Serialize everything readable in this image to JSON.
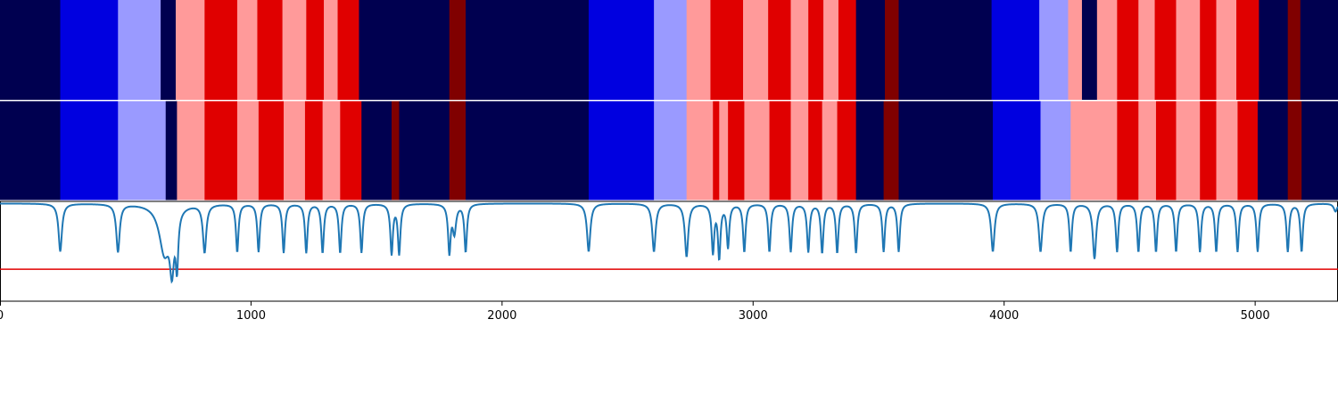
{
  "chart_data": [
    {
      "type": "heatmap",
      "title": "",
      "xlabel": "",
      "ylabel": "",
      "xlim": [
        0,
        5330
      ],
      "palette": {
        "1": "#000050",
        "2": "#0000e0",
        "3": "#9a9aff",
        "4": "#ff9a9a",
        "5": "#e00000",
        "6": "#800000"
      },
      "segments": [
        [
          0,
          240,
          1
        ],
        [
          240,
          470,
          2
        ],
        [
          470,
          640,
          3
        ],
        [
          640,
          700,
          1
        ],
        [
          700,
          815,
          4
        ],
        [
          815,
          945,
          5
        ],
        [
          945,
          1025,
          4
        ],
        [
          1025,
          1125,
          5
        ],
        [
          1125,
          1220,
          4
        ],
        [
          1220,
          1290,
          5
        ],
        [
          1290,
          1345,
          4
        ],
        [
          1345,
          1430,
          5
        ],
        [
          1430,
          1790,
          1
        ],
        [
          1790,
          1855,
          6
        ],
        [
          1855,
          2345,
          1
        ],
        [
          2345,
          2605,
          2
        ],
        [
          2605,
          2735,
          3
        ],
        [
          2735,
          2830,
          4
        ],
        [
          2830,
          2960,
          5
        ],
        [
          2960,
          3060,
          4
        ],
        [
          3060,
          3150,
          5
        ],
        [
          3150,
          3220,
          4
        ],
        [
          3220,
          3280,
          5
        ],
        [
          3280,
          3340,
          4
        ],
        [
          3340,
          3410,
          5
        ],
        [
          3410,
          3525,
          1
        ],
        [
          3525,
          3580,
          6
        ],
        [
          3580,
          3950,
          1
        ],
        [
          3950,
          4140,
          2
        ],
        [
          4140,
          4255,
          3
        ],
        [
          4255,
          4310,
          4
        ],
        [
          4310,
          4370,
          1
        ],
        [
          4370,
          4450,
          4
        ],
        [
          4450,
          4535,
          5
        ],
        [
          4535,
          4600,
          4
        ],
        [
          4600,
          4685,
          5
        ],
        [
          4685,
          4780,
          4
        ],
        [
          4780,
          4845,
          5
        ],
        [
          4845,
          4925,
          4
        ],
        [
          4925,
          5015,
          5
        ],
        [
          5015,
          5130,
          1
        ],
        [
          5130,
          5180,
          6
        ],
        [
          5180,
          5330,
          1
        ]
      ]
    },
    {
      "type": "heatmap",
      "title": "",
      "xlabel": "",
      "ylabel": "",
      "xlim": [
        0,
        5330
      ],
      "segments": [
        [
          0,
          240,
          1
        ],
        [
          240,
          470,
          2
        ],
        [
          470,
          660,
          3
        ],
        [
          660,
          705,
          1
        ],
        [
          705,
          815,
          4
        ],
        [
          815,
          945,
          5
        ],
        [
          945,
          1030,
          4
        ],
        [
          1030,
          1130,
          5
        ],
        [
          1130,
          1215,
          4
        ],
        [
          1215,
          1285,
          5
        ],
        [
          1285,
          1355,
          4
        ],
        [
          1355,
          1440,
          5
        ],
        [
          1440,
          1560,
          1
        ],
        [
          1560,
          1590,
          6
        ],
        [
          1590,
          1790,
          1
        ],
        [
          1790,
          1855,
          6
        ],
        [
          1855,
          2345,
          1
        ],
        [
          2345,
          2605,
          2
        ],
        [
          2605,
          2735,
          3
        ],
        [
          2735,
          2840,
          4
        ],
        [
          2840,
          2865,
          5
        ],
        [
          2865,
          2900,
          4
        ],
        [
          2900,
          2965,
          5
        ],
        [
          2965,
          3065,
          4
        ],
        [
          3065,
          3150,
          5
        ],
        [
          3150,
          3220,
          4
        ],
        [
          3220,
          3275,
          5
        ],
        [
          3275,
          3335,
          4
        ],
        [
          3335,
          3410,
          5
        ],
        [
          3410,
          3520,
          1
        ],
        [
          3520,
          3580,
          6
        ],
        [
          3580,
          3955,
          1
        ],
        [
          3955,
          4145,
          2
        ],
        [
          4145,
          4265,
          3
        ],
        [
          4265,
          4450,
          4
        ],
        [
          4450,
          4535,
          5
        ],
        [
          4535,
          4605,
          4
        ],
        [
          4605,
          4685,
          5
        ],
        [
          4685,
          4780,
          4
        ],
        [
          4780,
          4845,
          5
        ],
        [
          4845,
          4930,
          4
        ],
        [
          4930,
          5010,
          5
        ],
        [
          5010,
          5130,
          1
        ],
        [
          5130,
          5185,
          6
        ],
        [
          5185,
          5330,
          1
        ]
      ]
    },
    {
      "type": "line",
      "title": "",
      "xlabel": "",
      "ylabel": "",
      "xlim": [
        0,
        5330
      ],
      "ylim": [
        0,
        1
      ],
      "line_color": "#1f77b4",
      "threshold_color": "#e00000",
      "threshold": 0.32,
      "baseline": 0.98,
      "dips": [
        [
          240,
          0.5,
          8
        ],
        [
          470,
          0.5,
          8
        ],
        [
          655,
          0.5,
          25
        ],
        [
          685,
          0.44,
          10
        ],
        [
          705,
          0.45,
          6
        ],
        [
          815,
          0.5,
          8
        ],
        [
          945,
          0.5,
          6
        ],
        [
          1030,
          0.5,
          6
        ],
        [
          1130,
          0.49,
          6
        ],
        [
          1220,
          0.49,
          6
        ],
        [
          1285,
          0.49,
          6
        ],
        [
          1355,
          0.49,
          6
        ],
        [
          1440,
          0.49,
          6
        ],
        [
          1560,
          0.48,
          6
        ],
        [
          1590,
          0.48,
          6
        ],
        [
          1790,
          0.5,
          6
        ],
        [
          1810,
          0.7,
          8
        ],
        [
          1855,
          0.5,
          6
        ],
        [
          2345,
          0.5,
          8
        ],
        [
          2605,
          0.5,
          8
        ],
        [
          2735,
          0.45,
          8
        ],
        [
          2840,
          0.5,
          6
        ],
        [
          2865,
          0.45,
          6
        ],
        [
          2900,
          0.55,
          6
        ],
        [
          2965,
          0.5,
          6
        ],
        [
          3065,
          0.5,
          6
        ],
        [
          3150,
          0.5,
          6
        ],
        [
          3220,
          0.5,
          6
        ],
        [
          3275,
          0.49,
          6
        ],
        [
          3335,
          0.49,
          6
        ],
        [
          3410,
          0.49,
          6
        ],
        [
          3520,
          0.5,
          6
        ],
        [
          3580,
          0.5,
          6
        ],
        [
          3955,
          0.5,
          8
        ],
        [
          4145,
          0.5,
          8
        ],
        [
          4265,
          0.5,
          6
        ],
        [
          4360,
          0.43,
          8
        ],
        [
          4450,
          0.5,
          6
        ],
        [
          4535,
          0.5,
          6
        ],
        [
          4605,
          0.5,
          6
        ],
        [
          4685,
          0.5,
          6
        ],
        [
          4780,
          0.5,
          6
        ],
        [
          4845,
          0.5,
          6
        ],
        [
          4930,
          0.5,
          6
        ],
        [
          5010,
          0.5,
          6
        ],
        [
          5130,
          0.5,
          6
        ],
        [
          5185,
          0.5,
          6
        ],
        [
          5320,
          0.9,
          8
        ]
      ],
      "x_ticks": [
        0,
        1000,
        2000,
        3000,
        4000,
        5000
      ],
      "x_tick_labels": [
        "0",
        "1000",
        "2000",
        "3000",
        "4000",
        "5000"
      ]
    }
  ]
}
